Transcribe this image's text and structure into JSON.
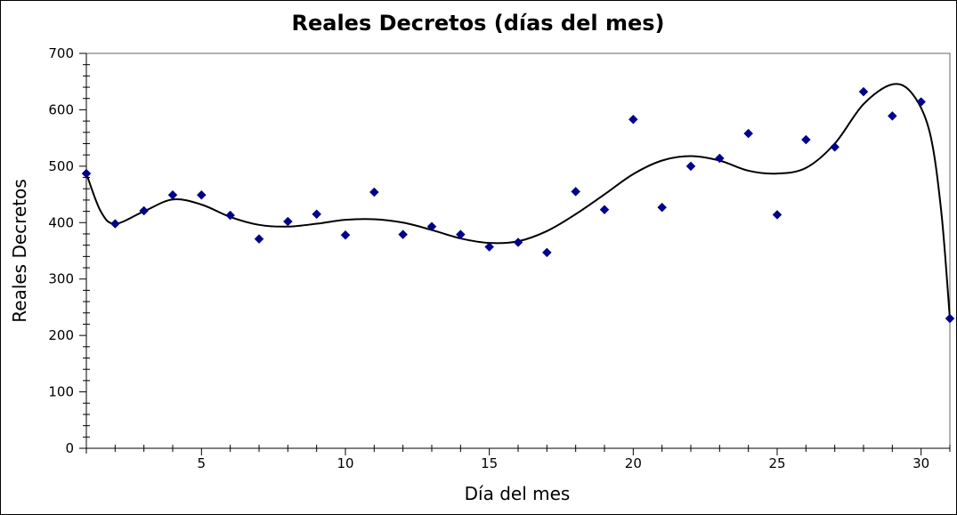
{
  "chart_data": {
    "type": "scatter",
    "title": "Reales Decretos (días del mes)",
    "xlabel": "Día del mes",
    "ylabel": "Reales Decretos",
    "xlim": [
      1,
      31
    ],
    "ylim": [
      0,
      700
    ],
    "x_ticks": [
      5,
      10,
      15,
      20,
      25,
      30
    ],
    "y_ticks": [
      0,
      100,
      200,
      300,
      400,
      500,
      600,
      700
    ],
    "grid": false,
    "legend": "none",
    "marker_color": "#00008b",
    "trendline_color": "#000000",
    "trendline": true,
    "series": [
      {
        "x": [
          1,
          2,
          3,
          4,
          5,
          6,
          7,
          8,
          9,
          10,
          11,
          12,
          13,
          14,
          15,
          16,
          17,
          18,
          19,
          20,
          21,
          22,
          23,
          24,
          25,
          26,
          27,
          28,
          29,
          30,
          31
        ],
        "values": [
          487,
          398,
          421,
          449,
          449,
          413,
          371,
          402,
          415,
          378,
          454,
          379,
          393,
          379,
          357,
          365,
          347,
          455,
          423,
          583,
          427,
          500,
          514,
          558,
          414,
          547,
          534,
          632,
          589,
          614,
          230
        ]
      }
    ],
    "trendline_points": {
      "x": [
        1,
        1.5,
        2,
        3,
        4,
        5,
        6,
        7,
        8,
        9,
        10,
        11,
        12,
        13,
        14,
        15,
        16,
        17,
        18,
        19,
        20,
        21,
        22,
        23,
        24,
        25,
        26,
        27,
        28,
        29,
        29.7,
        30.3,
        30.7,
        31
      ],
      "values": [
        487,
        420,
        398,
        420,
        441,
        432,
        410,
        396,
        393,
        398,
        405,
        406,
        400,
        387,
        372,
        364,
        367,
        385,
        415,
        450,
        486,
        510,
        518,
        510,
        492,
        487,
        497,
        540,
        610,
        645,
        628,
        560,
        420,
        230
      ]
    }
  }
}
